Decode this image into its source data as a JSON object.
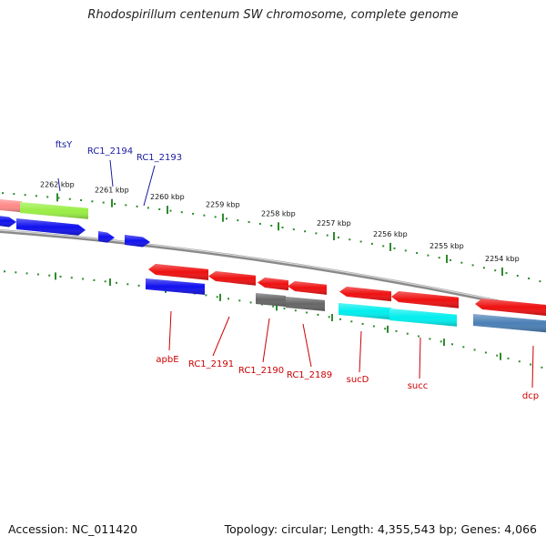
{
  "title": "Rhodospirillum centenum SW chromosome, complete genome",
  "footer": {
    "accession": "Accession: NC_011420",
    "summary": "Topology: circular; Length: 4,355,543 bp; Genes: 4,066"
  },
  "colors": {
    "forward_label": "#1a1aa0",
    "reverse_label": "#cc0000",
    "tick": "#2e8b2e",
    "backbone": "#808080",
    "blue": "#1010ee",
    "red": "#ee1010",
    "gray": "#666666",
    "cyan": "#00eeee",
    "steel": "#4a7fb5",
    "green": "#99ee44",
    "pink": "#ff8888"
  },
  "kbp_labels": [
    "2262 kbp",
    "2261 kbp",
    "2260 kbp",
    "2259 kbp",
    "2258 kbp",
    "2257 kbp",
    "2256 kbp",
    "2255 kbp",
    "2254 kbp"
  ],
  "forward_gene_labels": [
    "ftsY",
    "RC1_2194",
    "RC1_2193"
  ],
  "reverse_gene_labels": [
    "apbE",
    "RC1_2191",
    "RC1_2190",
    "RC1_2189",
    "sucD",
    "succ",
    "dcp"
  ]
}
